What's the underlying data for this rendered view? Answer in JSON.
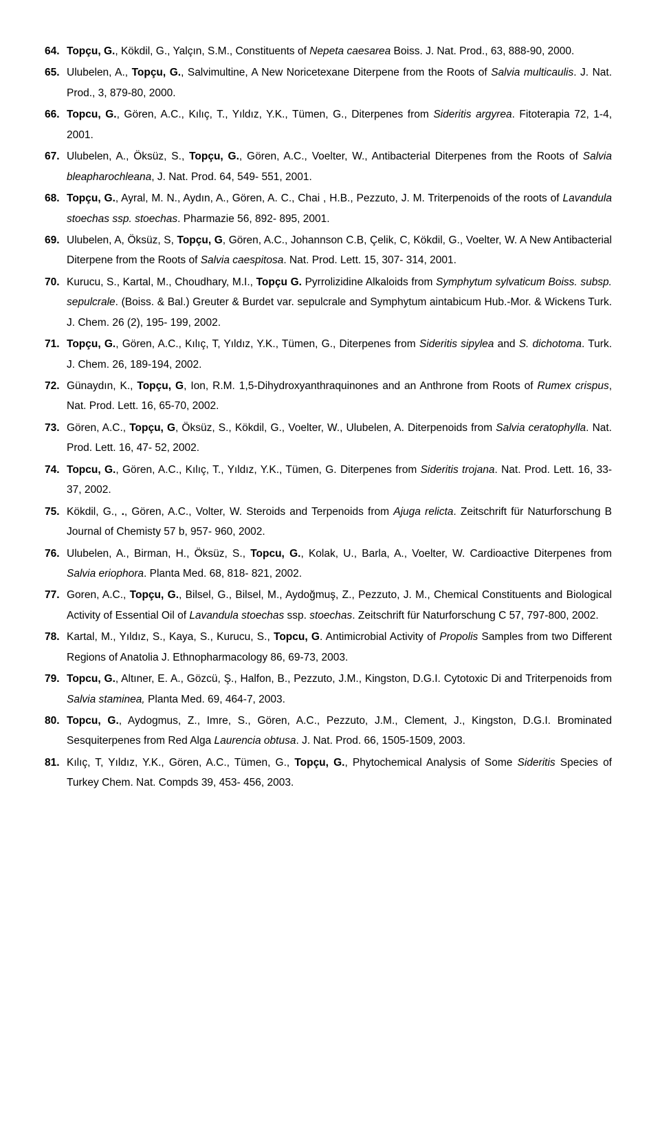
{
  "refs": [
    {
      "num": "64.",
      "segments": [
        {
          "t": "Topçu, G.",
          "b": true
        },
        {
          "t": ", Kökdil, G., Yalçın, S.M., Constituents of "
        },
        {
          "t": "Nepeta caesarea",
          "i": true
        },
        {
          "t": " Boiss. J. Nat. Prod., 63, 888-90, 2000."
        }
      ]
    },
    {
      "num": "65.",
      "segments": [
        {
          "t": "Ulubelen, A., "
        },
        {
          "t": "Topçu, G.",
          "b": true
        },
        {
          "t": ", Salvimultine, A New Noricetexane Diterpene from the Roots of "
        },
        {
          "t": "Salvia multicaulis",
          "i": true
        },
        {
          "t": ". J. Nat. Prod., 3, 879-80, 2000."
        }
      ]
    },
    {
      "num": "66.",
      "segments": [
        {
          "t": "Topcu, G.",
          "b": true
        },
        {
          "t": ", Gören, A.C., Kılıç, T., Yıldız, Y.K., Tümen, G., Diterpenes from "
        },
        {
          "t": "Sideritis argyrea",
          "i": true
        },
        {
          "t": ". Fitoterapia 72, 1-4, 2001."
        }
      ]
    },
    {
      "num": "67.",
      "segments": [
        {
          "t": "Ulubelen, A., Öksüz, S., "
        },
        {
          "t": "Topçu, G.",
          "b": true
        },
        {
          "t": ", Gören, A.C., Voelter, W., Antibacterial Diterpenes from the Roots of "
        },
        {
          "t": "Salvia bleapharochleana",
          "i": true
        },
        {
          "t": ", J. Nat. Prod. 64, 549- 551, 2001."
        }
      ]
    },
    {
      "num": "68.",
      "segments": [
        {
          "t": "Topçu, G.",
          "b": true
        },
        {
          "t": ", Ayral, M. N., Aydın, A., Gören, A. C., Chai , H.B., Pezzuto, J. M. Triterpenoids of the roots of "
        },
        {
          "t": "Lavandula stoechas ssp. stoechas",
          "i": true
        },
        {
          "t": ". Pharmazie 56, 892- 895, 2001."
        }
      ]
    },
    {
      "num": "69.",
      "segments": [
        {
          "t": "Ulubelen, A, Öksüz, S, "
        },
        {
          "t": "Topçu, G",
          "b": true
        },
        {
          "t": ", Gören, A.C., Johannson C.B, Çelik, C, Kökdil, G., Voelter, W. A New Antibacterial Diterpene from the Roots of "
        },
        {
          "t": "Salvia caespitosa",
          "i": true
        },
        {
          "t": ". Nat. Prod. Lett. 15, 307- 314, 2001."
        }
      ]
    },
    {
      "num": "70.",
      "segments": [
        {
          "t": "Kurucu, S., Kartal, M., Choudhary, M.I., "
        },
        {
          "t": "Topçu G.",
          "b": true
        },
        {
          "t": " Pyrrolizidine Alkaloids from "
        },
        {
          "t": "Symphytum sylvaticum Boiss. subsp. sepulcrale",
          "i": true
        },
        {
          "t": ". (Boiss. & Bal.) Greuter & Burdet var. sepulcrale and Symphytum aintabicum Hub.-Mor. & Wickens Turk. J. Chem. 26 (2), 195- 199, 2002."
        }
      ]
    },
    {
      "num": "71.",
      "segments": [
        {
          "t": "Topçu, G.",
          "b": true
        },
        {
          "t": ", Gören, A.C., Kılıç, T, Yıldız, Y.K., Tümen, G., Diterpenes from "
        },
        {
          "t": "Sideritis sipylea",
          "i": true
        },
        {
          "t": " and "
        },
        {
          "t": "S. dichotoma",
          "i": true
        },
        {
          "t": ". Turk. J. Chem. 26, 189-194, 2002."
        }
      ]
    },
    {
      "num": "72.",
      "segments": [
        {
          "t": "Günaydın, K., "
        },
        {
          "t": "Topçu, G",
          "b": true
        },
        {
          "t": ", Ion, R.M. 1,5-Dihydroxyanthraquinones and an Anthrone from Roots of "
        },
        {
          "t": "Rumex crispus",
          "i": true
        },
        {
          "t": ", Nat. Prod. Lett. 16, 65-70, 2002."
        }
      ]
    },
    {
      "num": "73.",
      "segments": [
        {
          "t": "Gören, A.C., "
        },
        {
          "t": "Topçu, G",
          "b": true
        },
        {
          "t": ", Öksüz, S., Kökdil, G., Voelter, W., Ulubelen, A. Diterpenoids from "
        },
        {
          "t": "Salvia ceratophylla",
          "i": true
        },
        {
          "t": ". Nat. Prod. Lett. 16, 47- 52, 2002."
        }
      ]
    },
    {
      "num": "74.",
      "segments": [
        {
          "t": "Topcu, G.",
          "b": true
        },
        {
          "t": ", Gören, A.C., Kılıç, T., Yıldız, Y.K., Tümen, G. Diterpenes from "
        },
        {
          "t": "Sideritis trojana",
          "i": true
        },
        {
          "t": ". Nat. Prod. Lett. 16, 33-37, 2002."
        }
      ]
    },
    {
      "num": "75.",
      "segments": [
        {
          "t": "Kökdil, G., "
        },
        {
          "t": ".",
          "b": true
        },
        {
          "t": ", Gören, A.C., Volter, W. Steroids and Terpenoids from "
        },
        {
          "t": "Ajuga relicta",
          "i": true
        },
        {
          "t": ". Zeitschrift für Naturforschung B Journal of Chemisty 57 b, 957- 960, 2002."
        }
      ]
    },
    {
      "num": "76.",
      "segments": [
        {
          "t": "Ulubelen, A., Birman, H., Öksüz, S., "
        },
        {
          "t": "Topcu, G.",
          "b": true
        },
        {
          "t": ", Kolak, U., Barla, A., Voelter, W. Cardioactive Diterpenes from "
        },
        {
          "t": "Salvia eriophora",
          "i": true
        },
        {
          "t": ". Planta Med. 68, 818- 821, 2002."
        }
      ]
    },
    {
      "num": "77.",
      "segments": [
        {
          "t": "Goren, A.C., "
        },
        {
          "t": "Topçu, G.",
          "b": true
        },
        {
          "t": ", Bilsel, G., Bilsel, M., Aydoğmuş, Z., Pezzuto, J. M., Chemical Constituents and Biological Activity of Essential Oil of "
        },
        {
          "t": "Lavandula stoechas",
          "i": true
        },
        {
          "t": " ssp. "
        },
        {
          "t": "stoechas",
          "i": true
        },
        {
          "t": ". Zeitschrift für Naturforschung C 57, 797-800, 2002."
        }
      ]
    },
    {
      "num": "78.",
      "segments": [
        {
          "t": "Kartal, M., Yıldız, S., Kaya, S., Kurucu, S., "
        },
        {
          "t": "Topcu, G",
          "b": true
        },
        {
          "t": ". Antimicrobial Activity of "
        },
        {
          "t": "Propolis",
          "i": true
        },
        {
          "t": " Samples from two Different Regions of Anatolia J. Ethnopharmacology 86, 69-73, 2003."
        }
      ]
    },
    {
      "num": "79.",
      "segments": [
        {
          "t": "Topcu, G.",
          "b": true
        },
        {
          "t": ", Altıner, E. A., Gözcü, Ş., Halfon, B., Pezzuto, J.M., Kingston, D.G.I. Cytotoxic Di and Triterpenoids from "
        },
        {
          "t": "Salvia staminea,",
          "i": true
        },
        {
          "t": " Planta Med. 69, 464-7, 2003."
        }
      ]
    },
    {
      "num": "80.",
      "segments": [
        {
          "t": "Topcu, G.",
          "b": true
        },
        {
          "t": ", Aydogmus, Z., Imre, S., Gören, A.C., Pezzuto, J.M., Clement, J., Kingston, D.G.I. Brominated Sesquiterpenes from Red Alga "
        },
        {
          "t": "Laurencia obtusa",
          "i": true
        },
        {
          "t": ". J. Nat. Prod. 66, 1505-1509, 2003."
        }
      ]
    },
    {
      "num": "81.",
      "segments": [
        {
          "t": "Kılıç, T, Yıldız, Y.K., Gören, A.C., Tümen, G., "
        },
        {
          "t": "Topçu, G.",
          "b": true
        },
        {
          "t": ", Phytochemical Analysis of Some "
        },
        {
          "t": "Sideritis",
          "i": true
        },
        {
          "t": " Species of Turkey Chem. Nat. Compds 39, 453- 456, 2003."
        }
      ]
    }
  ]
}
